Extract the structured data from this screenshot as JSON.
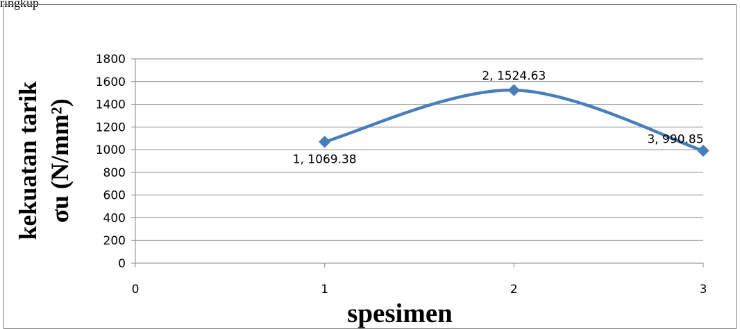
{
  "header": {
    "partial_text": "ringkup"
  },
  "chart_data": {
    "type": "scatter",
    "title": "",
    "xlabel": "spesimen",
    "ylabel_line1": "kekuatan tarik",
    "ylabel_line2": "σu (N/mm²)",
    "xlim": [
      0,
      3
    ],
    "ylim": [
      0,
      1800
    ],
    "x_ticks": [
      0,
      1,
      2,
      3
    ],
    "y_ticks": [
      0,
      200,
      400,
      600,
      800,
      1000,
      1200,
      1400,
      1600,
      1800
    ],
    "grid": true,
    "smoothed": true,
    "series": [
      {
        "color": "#4a7ebb",
        "points": [
          {
            "x": 1,
            "y": 1069.38,
            "label": "1, 1069.38"
          },
          {
            "x": 2,
            "y": 1524.63,
            "label": "2, 1524.63"
          },
          {
            "x": 3,
            "y": 990.85,
            "label": "3, 990.85"
          }
        ]
      }
    ]
  }
}
